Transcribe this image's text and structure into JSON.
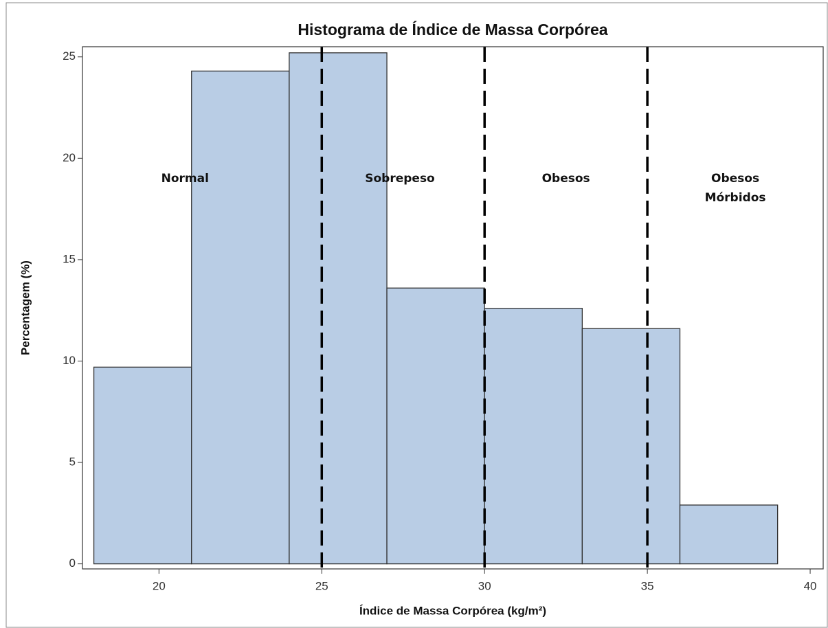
{
  "chart_data": {
    "type": "histogram",
    "title": "Histograma de Índice de Massa Corpórea",
    "x_label": "Índice de Massa Corpórea (kg/m²)",
    "y_label": "Percentagem (%)",
    "bins": [
      18,
      21,
      24,
      27,
      30,
      33,
      36,
      39
    ],
    "values": [
      9.7,
      24.3,
      25.2,
      13.6,
      12.6,
      11.6,
      2.9
    ],
    "color": "#b9cde5",
    "xlim": [
      17.65,
      40.4
    ],
    "xticks": [
      20,
      25,
      30,
      35,
      40
    ],
    "ylim": [
      -0.25,
      25.5
    ],
    "yticks": [
      0,
      5,
      10,
      15,
      20,
      25
    ],
    "reference_lines": [
      25,
      30,
      35
    ],
    "annotations": [
      {
        "lines": [
          "Normal"
        ],
        "x": 20.8,
        "y": 19
      },
      {
        "lines": [
          "Sobrepeso"
        ],
        "x": 27.4,
        "y": 19
      },
      {
        "lines": [
          "Obesos"
        ],
        "x": 32.5,
        "y": 19
      },
      {
        "lines": [
          "Obesos",
          "Mórbidos"
        ],
        "x": 37.7,
        "y": 19
      }
    ]
  }
}
